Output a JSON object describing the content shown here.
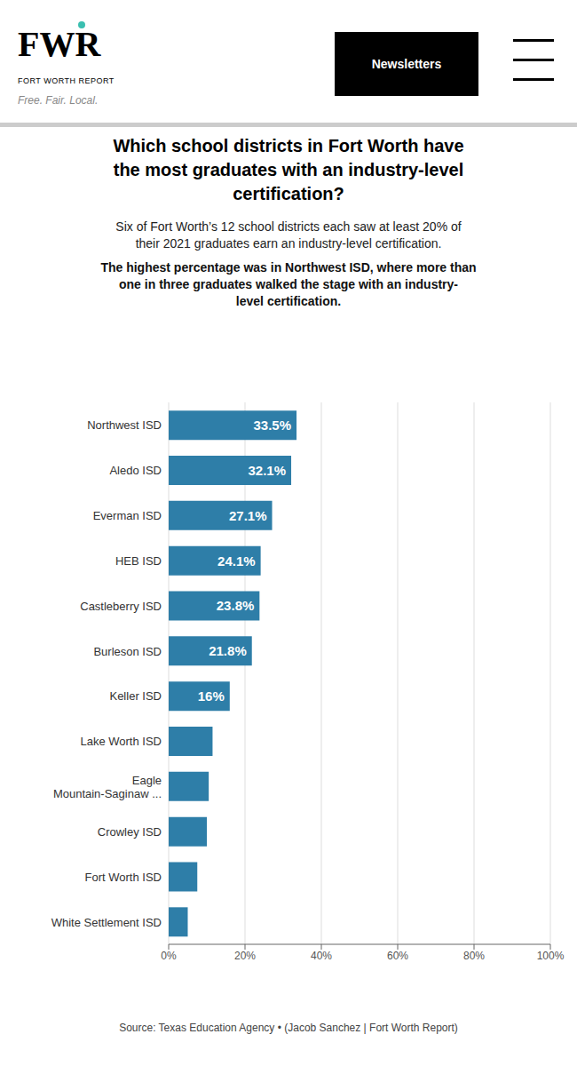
{
  "chart_data": {
    "type": "bar",
    "orientation": "horizontal",
    "title": "Which school districts in Fort Worth have\nthe most graduates with an industry-level\ncertification?",
    "subtitle": [
      "Six of Fort Worth’s 12 school districts each saw at least 20% of\ntheir 2021 graduates earn an industry-level certification. ",
      "The highest percentage was in Northwest ISD, where more than\none in three graduates walked the stage with an industry-\nlevel certification."
    ],
    "annotations": [
      "FWR",
      "FORT WORTH REPORT",
      "Free. Fair. Local.",
      "Newsletters"
    ],
    "source": "Source: Texas Education Agency • (Jacob Sanchez | Fort Worth Report)",
    "categories": [
      "Northwest ISD",
      "Aledo ISD",
      "Everman ISD",
      "HEB ISD",
      "Castleberry ISD",
      "Burleson ISD",
      "Keller ISD",
      "Lake Worth ISD",
      "Eagle\nMountain-Saginaw ...",
      "Crowley ISD",
      "Fort Worth ISD",
      "White Settlement ISD"
    ],
    "values": [
      33.5,
      32.1,
      27.1,
      24.1,
      23.8,
      21.8,
      16.0,
      11.5,
      10.5,
      10.0,
      7.5,
      5.0
    ],
    "data_labels": true,
    "value_labels": [
      "33.5%",
      "32.1%",
      "27.1%",
      "24.1%",
      "23.8%",
      "21.8%",
      "16%",
      null,
      null,
      null,
      null,
      null
    ],
    "color": "#2e7ea8",
    "xlim": [
      0,
      100
    ],
    "xticks": [
      {
        "value": 0,
        "label": "0%"
      },
      {
        "value": 20,
        "label": "20%"
      },
      {
        "value": 40,
        "label": "40%"
      },
      {
        "value": 60,
        "label": "60%"
      },
      {
        "value": 80,
        "label": "80%"
      },
      {
        "value": 100,
        "label": "100%"
      }
    ],
    "grid": true
  }
}
